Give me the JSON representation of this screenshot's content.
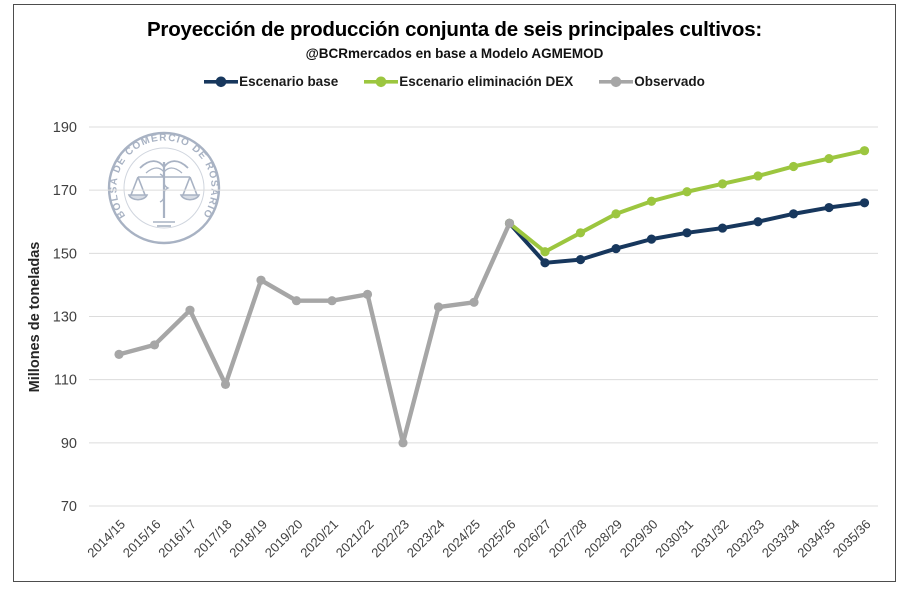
{
  "logo": {
    "ring_text": "BOLSA DE COMERCIO DE ROSARIO"
  },
  "chart_data": {
    "type": "line",
    "title": "Proyección de producción conjunta de seis principales cultivos:",
    "subtitle": "@BCRmercados en base a Modelo AGMEMOD",
    "ylabel": "Millones de toneladas",
    "xlabel": "",
    "ylim": [
      70,
      190
    ],
    "ytick_step": 20,
    "grid": true,
    "legend_position": "top",
    "categories": [
      "2014/15",
      "2015/16",
      "2016/17",
      "2017/18",
      "2018/19",
      "2019/20",
      "2020/21",
      "2021/22",
      "2022/23",
      "2023/24",
      "2024/25",
      "2025/26",
      "2026/27",
      "2027/28",
      "2028/29",
      "2029/30",
      "2030/31",
      "2031/32",
      "2032/33",
      "2033/34",
      "2034/35",
      "2035/36"
    ],
    "series": [
      {
        "name": "Escenario base",
        "color": "#17375d",
        "start_index": 11,
        "values": [
          159.5,
          147,
          148,
          151.5,
          154.5,
          156.5,
          158,
          160,
          162.5,
          164.5,
          166
        ]
      },
      {
        "name": "Escenario eliminación DEX",
        "color": "#9cc63f",
        "start_index": 11,
        "values": [
          159.5,
          150.5,
          156.5,
          162.5,
          166.5,
          169.5,
          172,
          174.5,
          177.5,
          180,
          182.5
        ]
      },
      {
        "name": "Observado",
        "color": "#a6a6a6",
        "start_index": 0,
        "values": [
          118,
          121,
          132,
          108.5,
          141.5,
          135,
          135,
          137,
          90,
          133,
          134.5,
          159.5
        ]
      }
    ]
  }
}
